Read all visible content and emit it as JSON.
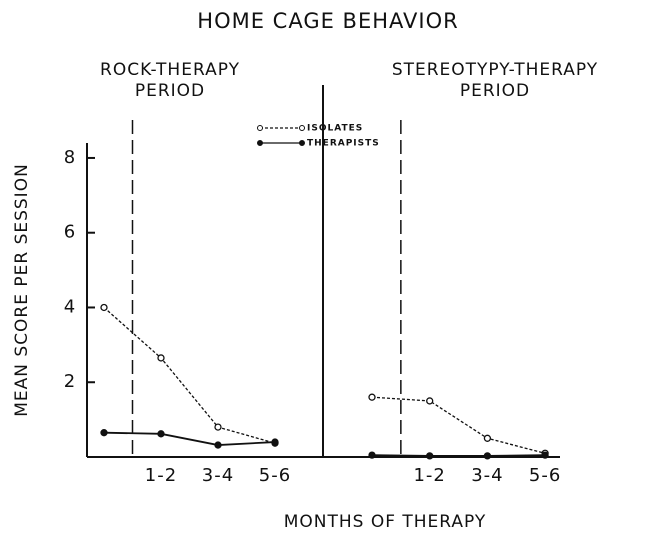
{
  "title": "HOME CAGE BEHAVIOR",
  "x_label": "MONTHS OF THERAPY",
  "y_label": "MEAN SCORE PER SESSION",
  "chart_data": [
    {
      "type": "line",
      "title": [
        "ROCK-THERAPY",
        "PERIOD"
      ],
      "categories": [
        null,
        "1-2",
        "3-4",
        "5-6"
      ],
      "ylim": [
        0,
        8.4
      ],
      "yticks": [
        2,
        4,
        6,
        8
      ],
      "series": [
        {
          "name": "ISOLATES",
          "color": "#111111",
          "style": "dashed",
          "marker": "open",
          "values": [
            4.0,
            2.65,
            0.8,
            0.37
          ]
        },
        {
          "name": "THERAPISTS",
          "color": "#111111",
          "style": "solid",
          "marker": "filled",
          "values": [
            0.65,
            0.62,
            0.32,
            0.4
          ]
        }
      ]
    },
    {
      "type": "line",
      "title": [
        "STEREOTYPY-THERAPY",
        "PERIOD"
      ],
      "categories": [
        null,
        "1-2",
        "3-4",
        "5-6"
      ],
      "ylim": [
        0,
        8.4
      ],
      "series": [
        {
          "color": "#111111",
          "style": "dashed",
          "marker": "open",
          "values": [
            1.6,
            1.5,
            0.5,
            0.1
          ]
        },
        {
          "color": "#111111",
          "style": "solid",
          "marker": "filled",
          "values": [
            0.05,
            0.03,
            0.03,
            0.05
          ]
        }
      ]
    }
  ]
}
